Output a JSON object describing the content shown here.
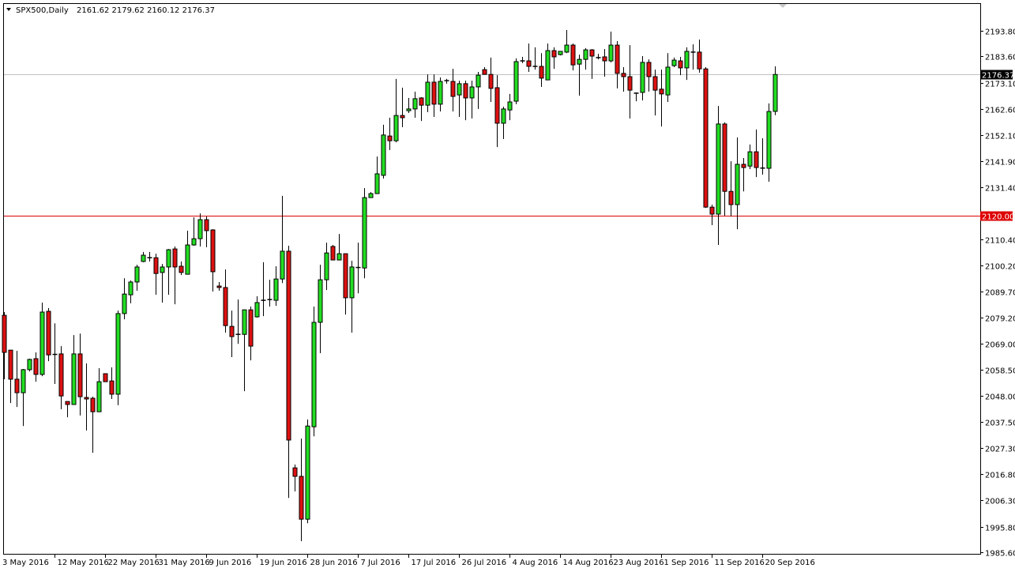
{
  "header": {
    "symbol_label": "SPX500,Daily",
    "ohlc_label": "2161.62 2179.62 2160.12 2176.37"
  },
  "colors": {
    "bull": "#22dd22",
    "bear": "#dd1111",
    "outline": "#000000",
    "price_line": "#c0c0c0",
    "level_line": "#dd0000",
    "background": "#ffffff"
  },
  "chart_data": {
    "type": "candlestick",
    "title": "SPX500,Daily",
    "ylim": [
      1985.6,
      2193.8
    ],
    "grid": false,
    "y_axis_position": "right",
    "y_ticks": [
      "2193.80",
      "2183.60",
      "2173.10",
      "2162.60",
      "2152.10",
      "2141.90",
      "2131.40",
      "2110.40",
      "2100.20",
      "2089.70",
      "2079.20",
      "2069.00",
      "2058.50",
      "2048.00",
      "2037.50",
      "2027.30",
      "2016.80",
      "2006.30",
      "1995.80",
      "1985.60"
    ],
    "x_labels": [
      {
        "text": "3 May 2016",
        "date": "2016-05-03"
      },
      {
        "text": "12 May 2016",
        "date": "2016-05-12"
      },
      {
        "text": "22 May 2016",
        "date": "2016-05-22"
      },
      {
        "text": "31 May 2016",
        "date": "2016-05-31"
      },
      {
        "text": "9 Jun 2016",
        "date": "2016-06-09"
      },
      {
        "text": "19 Jun 2016",
        "date": "2016-06-19"
      },
      {
        "text": "28 Jun 2016",
        "date": "2016-06-28"
      },
      {
        "text": "7 Jul 2016",
        "date": "2016-07-07"
      },
      {
        "text": "17 Jul 2016",
        "date": "2016-07-17"
      },
      {
        "text": "26 Jul 2016",
        "date": "2016-07-26"
      },
      {
        "text": "4 Aug 2016",
        "date": "2016-08-04"
      },
      {
        "text": "14 Aug 2016",
        "date": "2016-08-14"
      },
      {
        "text": "23 Aug 2016",
        "date": "2016-08-23"
      },
      {
        "text": "1 Sep 2016",
        "date": "2016-09-01"
      },
      {
        "text": "11 Sep 2016",
        "date": "2016-09-11"
      },
      {
        "text": "20 Sep 2016",
        "date": "2016-09-20"
      }
    ],
    "current_price": {
      "value": 2176.37,
      "label": "2176.37"
    },
    "level_line": {
      "value": 2120.0,
      "label": "2120.00"
    },
    "candles_fields": [
      "date",
      "open",
      "high",
      "low",
      "close"
    ],
    "candles": [
      [
        "2016-05-03",
        2080.2,
        2081.5,
        2054.7,
        2065.4
      ],
      [
        "2016-05-04",
        2066.3,
        2066.3,
        2045.2,
        2054.7
      ],
      [
        "2016-05-05",
        2054.7,
        2066.0,
        2043.6,
        2049.3
      ],
      [
        "2016-05-06",
        2049.3,
        2058.8,
        2036.0,
        2058.5
      ],
      [
        "2016-05-08",
        2058.5,
        2062.9,
        2057.8,
        2062.6
      ],
      [
        "2016-05-09",
        2062.9,
        2065.4,
        2053.7,
        2056.6
      ],
      [
        "2016-05-10",
        2056.6,
        2085.3,
        2055.9,
        2081.5
      ],
      [
        "2016-05-11",
        2081.8,
        2083.1,
        2061.9,
        2064.4
      ],
      [
        "2016-05-12",
        2064.4,
        2077.0,
        2052.8,
        2064.6
      ],
      [
        "2016-05-13",
        2064.8,
        2067.9,
        2042.7,
        2048.0
      ],
      [
        "2016-05-15",
        2045.8,
        2045.8,
        2039.5,
        2044.6
      ],
      [
        "2016-05-16",
        2044.6,
        2072.3,
        2044.6,
        2064.8
      ],
      [
        "2016-05-17",
        2064.8,
        2072.9,
        2040.2,
        2047.7
      ],
      [
        "2016-05-18",
        2047.4,
        2061.0,
        2034.2,
        2046.8
      ],
      [
        "2016-05-19",
        2047.1,
        2047.7,
        2025.3,
        2041.7
      ],
      [
        "2016-05-20",
        2041.7,
        2059.1,
        2041.7,
        2053.7
      ],
      [
        "2016-05-22",
        2056.9,
        2056.9,
        2053.7,
        2053.7
      ],
      [
        "2016-05-23",
        2054.0,
        2059.4,
        2046.8,
        2048.7
      ],
      [
        "2016-05-24",
        2048.7,
        2082.1,
        2044.3,
        2080.9
      ],
      [
        "2016-05-25",
        2080.9,
        2095.0,
        2078.6,
        2088.7
      ],
      [
        "2016-05-26",
        2088.4,
        2094.1,
        2085.0,
        2093.5
      ],
      [
        "2016-05-27",
        2093.5,
        2100.4,
        2090.0,
        2099.5
      ],
      [
        "2016-05-29",
        2101.7,
        2105.5,
        2101.4,
        2104.2
      ],
      [
        "2016-05-30",
        2103.2,
        2105.5,
        2101.7,
        2103.0
      ],
      [
        "2016-05-31",
        2103.2,
        2104.8,
        2088.4,
        2096.9
      ],
      [
        "2016-06-01",
        2097.3,
        2100.7,
        2085.3,
        2099.5
      ],
      [
        "2016-06-02",
        2099.5,
        2106.7,
        2088.4,
        2106.4
      ],
      [
        "2016-06-03",
        2106.7,
        2107.7,
        2084.6,
        2099.5
      ],
      [
        "2016-06-05",
        2099.8,
        2101.7,
        2096.3,
        2097.3
      ],
      [
        "2016-06-06",
        2096.6,
        2114.0,
        2096.6,
        2108.3
      ],
      [
        "2016-06-07",
        2108.3,
        2119.3,
        2108.0,
        2110.8
      ],
      [
        "2016-06-08",
        2110.8,
        2120.9,
        2107.7,
        2118.4
      ],
      [
        "2016-06-09",
        2118.4,
        2119.7,
        2107.4,
        2114.0
      ],
      [
        "2016-06-10",
        2114.3,
        2114.6,
        2089.7,
        2097.6
      ],
      [
        "2016-06-12",
        2091.9,
        2093.5,
        2090.0,
        2091.3
      ],
      [
        "2016-06-13",
        2091.3,
        2098.5,
        2073.3,
        2076.1
      ],
      [
        "2016-06-14",
        2075.8,
        2082.1,
        2063.5,
        2071.7
      ],
      [
        "2016-06-15",
        2072.3,
        2086.5,
        2068.8,
        2072.6
      ],
      [
        "2016-06-16",
        2072.6,
        2082.4,
        2049.9,
        2082.4
      ],
      [
        "2016-06-17",
        2082.4,
        2083.7,
        2062.2,
        2067.9
      ],
      [
        "2016-06-19",
        2079.6,
        2087.8,
        2079.3,
        2085.3
      ],
      [
        "2016-06-20",
        2085.9,
        2101.4,
        2079.9,
        2086.2
      ],
      [
        "2016-06-21",
        2086.2,
        2094.4,
        2083.7,
        2086.5
      ],
      [
        "2016-06-22",
        2086.2,
        2099.8,
        2084.0,
        2094.7
      ],
      [
        "2016-06-23",
        2094.7,
        2127.9,
        2093.1,
        2105.8
      ],
      [
        "2016-06-24",
        2105.8,
        2108.0,
        2007.3,
        2030.4
      ],
      [
        "2016-06-26",
        2019.3,
        2020.6,
        2009.9,
        2015.9
      ],
      [
        "2016-06-27",
        2015.9,
        2031.0,
        1990.0,
        1998.8
      ],
      [
        "2016-06-28",
        1998.8,
        2038.6,
        1997.2,
        2036.0
      ],
      [
        "2016-06-29",
        2035.7,
        2083.7,
        2031.9,
        2077.4
      ],
      [
        "2016-06-30",
        2077.4,
        2100.4,
        2065.1,
        2094.4
      ],
      [
        "2016-07-01",
        2094.4,
        2109.2,
        2090.3,
        2105.1
      ],
      [
        "2016-07-03",
        2107.7,
        2108.3,
        2102.3,
        2102.3
      ],
      [
        "2016-07-04",
        2102.3,
        2112.7,
        2102.3,
        2104.8
      ],
      [
        "2016-07-05",
        2104.8,
        2104.8,
        2080.5,
        2087.2
      ],
      [
        "2016-07-06",
        2087.2,
        2102.0,
        2073.3,
        2099.5
      ],
      [
        "2016-07-07",
        2099.1,
        2109.2,
        2089.0,
        2099.3
      ],
      [
        "2016-07-08",
        2099.1,
        2131.0,
        2095.0,
        2127.2
      ],
      [
        "2016-07-10",
        2127.2,
        2129.4,
        2127.2,
        2128.8
      ],
      [
        "2016-07-11",
        2128.8,
        2143.6,
        2128.8,
        2136.7
      ],
      [
        "2016-07-12",
        2136.1,
        2156.3,
        2134.8,
        2152.2
      ],
      [
        "2016-07-13",
        2151.8,
        2159.1,
        2146.2,
        2149.9
      ],
      [
        "2016-07-14",
        2149.9,
        2174.6,
        2149.3,
        2160.0
      ],
      [
        "2016-07-15",
        2160.0,
        2171.1,
        2155.3,
        2159.1
      ],
      [
        "2016-07-17",
        2161.9,
        2167.0,
        2161.0,
        2162.6
      ],
      [
        "2016-07-18",
        2162.6,
        2169.5,
        2159.1,
        2166.7
      ],
      [
        "2016-07-19",
        2167.0,
        2167.3,
        2157.8,
        2164.1
      ],
      [
        "2016-07-20",
        2164.1,
        2176.4,
        2161.3,
        2173.3
      ],
      [
        "2016-07-21",
        2173.3,
        2176.4,
        2159.4,
        2164.5
      ],
      [
        "2016-07-22",
        2164.5,
        2175.2,
        2161.6,
        2173.6
      ],
      [
        "2016-07-24",
        2173.9,
        2174.6,
        2172.7,
        2173.8
      ],
      [
        "2016-07-25",
        2173.6,
        2178.6,
        2161.6,
        2167.6
      ],
      [
        "2016-07-26",
        2168.2,
        2173.9,
        2159.4,
        2172.7
      ],
      [
        "2016-07-27",
        2172.7,
        2173.9,
        2158.1,
        2167.0
      ],
      [
        "2016-07-28",
        2167.0,
        2173.9,
        2158.8,
        2171.4
      ],
      [
        "2016-07-29",
        2171.4,
        2177.4,
        2162.6,
        2176.1
      ],
      [
        "2016-07-31",
        2178.3,
        2179.3,
        2176.4,
        2176.4
      ],
      [
        "2016-08-01",
        2176.4,
        2183.1,
        2165.4,
        2170.8
      ],
      [
        "2016-08-02",
        2171.1,
        2176.1,
        2147.4,
        2156.9
      ],
      [
        "2016-08-03",
        2156.9,
        2163.5,
        2150.6,
        2162.6
      ],
      [
        "2016-08-04",
        2162.2,
        2168.6,
        2158.1,
        2165.4
      ],
      [
        "2016-08-05",
        2165.7,
        2182.8,
        2164.5,
        2181.5
      ],
      [
        "2016-08-07",
        2181.8,
        2183.4,
        2180.9,
        2181.6
      ],
      [
        "2016-08-08",
        2181.8,
        2188.7,
        2177.4,
        2179.6
      ],
      [
        "2016-08-09",
        2179.6,
        2187.2,
        2178.3,
        2179.4
      ],
      [
        "2016-08-10",
        2179.6,
        2184.9,
        2171.4,
        2174.9
      ],
      [
        "2016-08-11",
        2174.2,
        2188.7,
        2174.2,
        2185.9
      ],
      [
        "2016-08-12",
        2185.9,
        2187.2,
        2178.6,
        2183.4
      ],
      [
        "2016-08-14",
        2184.3,
        2185.6,
        2184.0,
        2185.6
      ],
      [
        "2016-08-15",
        2185.3,
        2194.1,
        2184.9,
        2188.1
      ],
      [
        "2016-08-16",
        2188.1,
        2188.7,
        2178.0,
        2180.2
      ],
      [
        "2016-08-17",
        2180.5,
        2184.3,
        2167.9,
        2182.4
      ],
      [
        "2016-08-18",
        2182.4,
        2186.9,
        2178.3,
        2186.2
      ],
      [
        "2016-08-19",
        2186.2,
        2186.5,
        2174.6,
        2183.7
      ],
      [
        "2016-08-21",
        2183.1,
        2184.6,
        2182.4,
        2183.0
      ],
      [
        "2016-08-22",
        2183.4,
        2186.5,
        2175.5,
        2181.8
      ],
      [
        "2016-08-23",
        2181.8,
        2193.5,
        2181.2,
        2188.1
      ],
      [
        "2016-08-24",
        2188.1,
        2189.7,
        2170.8,
        2176.8
      ],
      [
        "2016-08-25",
        2176.8,
        2179.3,
        2169.5,
        2175.5
      ],
      [
        "2016-08-26",
        2175.5,
        2188.1,
        2158.8,
        2170.1
      ],
      [
        "2016-08-28",
        2168.9,
        2169.2,
        2165.7,
        2168.7
      ],
      [
        "2016-08-29",
        2169.2,
        2183.7,
        2166.0,
        2181.2
      ],
      [
        "2016-08-30",
        2181.2,
        2182.4,
        2169.5,
        2175.5
      ],
      [
        "2016-08-31",
        2175.5,
        2178.3,
        2160.0,
        2170.1
      ],
      [
        "2016-09-01",
        2170.5,
        2178.3,
        2155.6,
        2168.6
      ],
      [
        "2016-09-02",
        2168.2,
        2184.9,
        2165.4,
        2179.3
      ],
      [
        "2016-09-04",
        2179.9,
        2183.1,
        2179.3,
        2182.1
      ],
      [
        "2016-09-05",
        2181.8,
        2183.4,
        2176.1,
        2179.0
      ],
      [
        "2016-09-06",
        2179.0,
        2187.2,
        2174.2,
        2185.6
      ],
      [
        "2016-09-07",
        2185.3,
        2188.4,
        2178.3,
        2185.1
      ],
      [
        "2016-09-08",
        2185.3,
        2190.3,
        2177.1,
        2178.6
      ],
      [
        "2016-09-09",
        2178.6,
        2179.3,
        2123.1,
        2123.4
      ],
      [
        "2016-09-11",
        2123.4,
        2124.4,
        2116.2,
        2120.6
      ],
      [
        "2016-09-12",
        2120.6,
        2163.8,
        2108.3,
        2156.6
      ],
      [
        "2016-09-13",
        2156.6,
        2157.2,
        2120.0,
        2129.7
      ],
      [
        "2016-09-14",
        2129.7,
        2141.7,
        2119.7,
        2124.4
      ],
      [
        "2016-09-15",
        2124.4,
        2151.2,
        2114.6,
        2140.5
      ],
      [
        "2016-09-16",
        2140.5,
        2143.0,
        2129.7,
        2139.2
      ],
      [
        "2016-09-18",
        2139.8,
        2148.4,
        2138.6,
        2145.5
      ],
      [
        "2016-09-19",
        2145.5,
        2154.4,
        2135.4,
        2139.2
      ],
      [
        "2016-09-20",
        2138.9,
        2150.9,
        2136.4,
        2139.0
      ],
      [
        "2016-09-21",
        2138.9,
        2164.8,
        2133.5,
        2161.6
      ],
      [
        "2016-09-22",
        2161.62,
        2179.62,
        2160.12,
        2176.37
      ]
    ]
  }
}
